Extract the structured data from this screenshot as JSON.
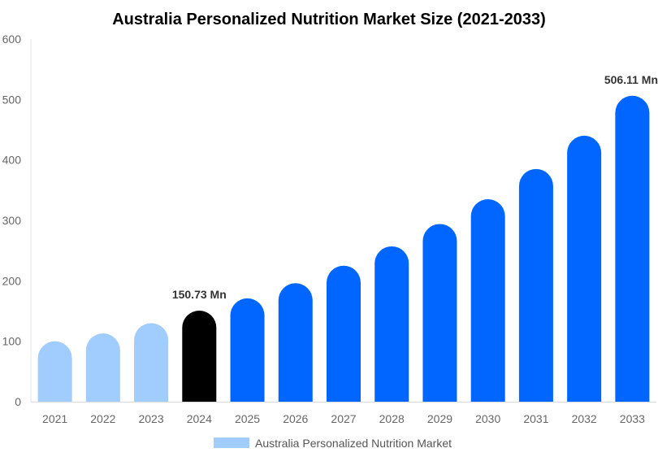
{
  "chart_data": {
    "type": "bar",
    "title": "Australia Personalized Nutrition Market Size (2021-2033)",
    "xlabel": "",
    "ylabel": "",
    "ylim": [
      0,
      600
    ],
    "yticks": [
      "0",
      "100",
      "200",
      "300",
      "400",
      "500",
      "600"
    ],
    "categories": [
      "2021",
      "2022",
      "2023",
      "2024",
      "2025",
      "2026",
      "2027",
      "2028",
      "2029",
      "2030",
      "2031",
      "2032",
      "2033"
    ],
    "series": [
      {
        "name": "Australia Personalized Nutrition Market",
        "values": [
          100,
          113,
          130,
          150.73,
          171,
          196,
          225,
          257,
          294,
          335,
          385,
          440,
          506.11
        ]
      }
    ],
    "bar_colors": [
      "#a0cdfe",
      "#a0cdfe",
      "#a0cdfe",
      "#000000",
      "#0066ff",
      "#0066ff",
      "#0066ff",
      "#0066ff",
      "#0066ff",
      "#0066ff",
      "#0066ff",
      "#0066ff",
      "#0066ff"
    ],
    "legend_color": "#a0cdfe",
    "legend_position": "bottom-center",
    "annotations": [
      {
        "category": "2024",
        "text": "150.73 Mn"
      },
      {
        "category": "2033",
        "text": "506.11 Mn"
      }
    ],
    "grid": false
  }
}
